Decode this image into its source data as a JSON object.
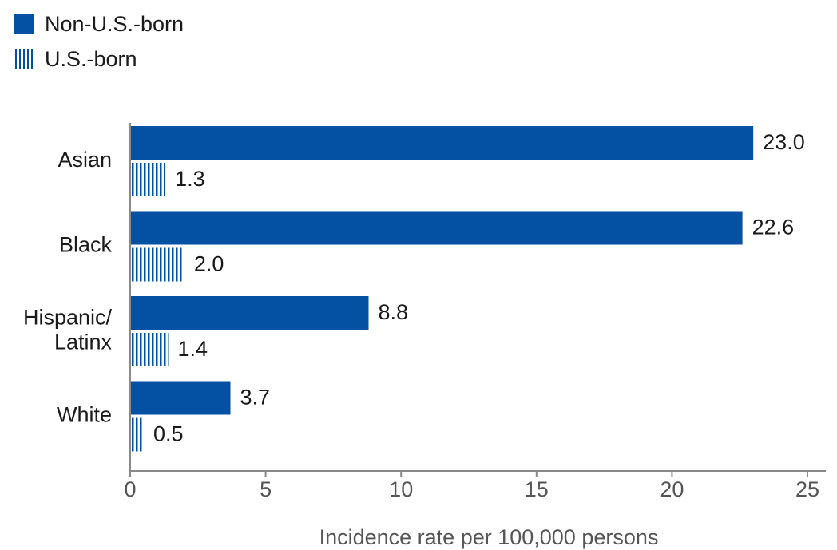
{
  "colors": {
    "non_us": "#0451a4",
    "us": "#0451a4",
    "axis": "#8a8a8a",
    "text": "#1a1a1a"
  },
  "legend": {
    "items": [
      {
        "label": "Non-U.S.-born",
        "pattern": "solid",
        "icon": "solid-square-icon"
      },
      {
        "label": "U.S.-born",
        "pattern": "vertical-stripes",
        "icon": "striped-square-icon"
      }
    ]
  },
  "chart_data": {
    "type": "bar",
    "orientation": "horizontal",
    "categories": [
      "Asian",
      "Black",
      "Hispanic/ Latinx",
      "White"
    ],
    "category_lines": [
      [
        "Asian"
      ],
      [
        "Black"
      ],
      [
        "Hispanic/",
        "Latinx"
      ],
      [
        "White"
      ]
    ],
    "series": [
      {
        "name": "Non-U.S.-born",
        "values": [
          23.0,
          22.6,
          8.8,
          3.7
        ],
        "labels": [
          "23.0",
          "22.6",
          "8.8",
          "3.7"
        ]
      },
      {
        "name": "U.S.-born",
        "values": [
          1.3,
          2.0,
          1.4,
          0.5
        ],
        "labels": [
          "1.3",
          "2.0",
          "1.4",
          "0.5"
        ]
      }
    ],
    "xlim": [
      0,
      25
    ],
    "xticks": [
      "0",
      "5",
      "10",
      "15",
      "20",
      "25"
    ],
    "xlabel": "Incidence rate per 100,000 persons",
    "ylabel": "",
    "title": "",
    "grid": false,
    "legend_position": "top-left"
  }
}
